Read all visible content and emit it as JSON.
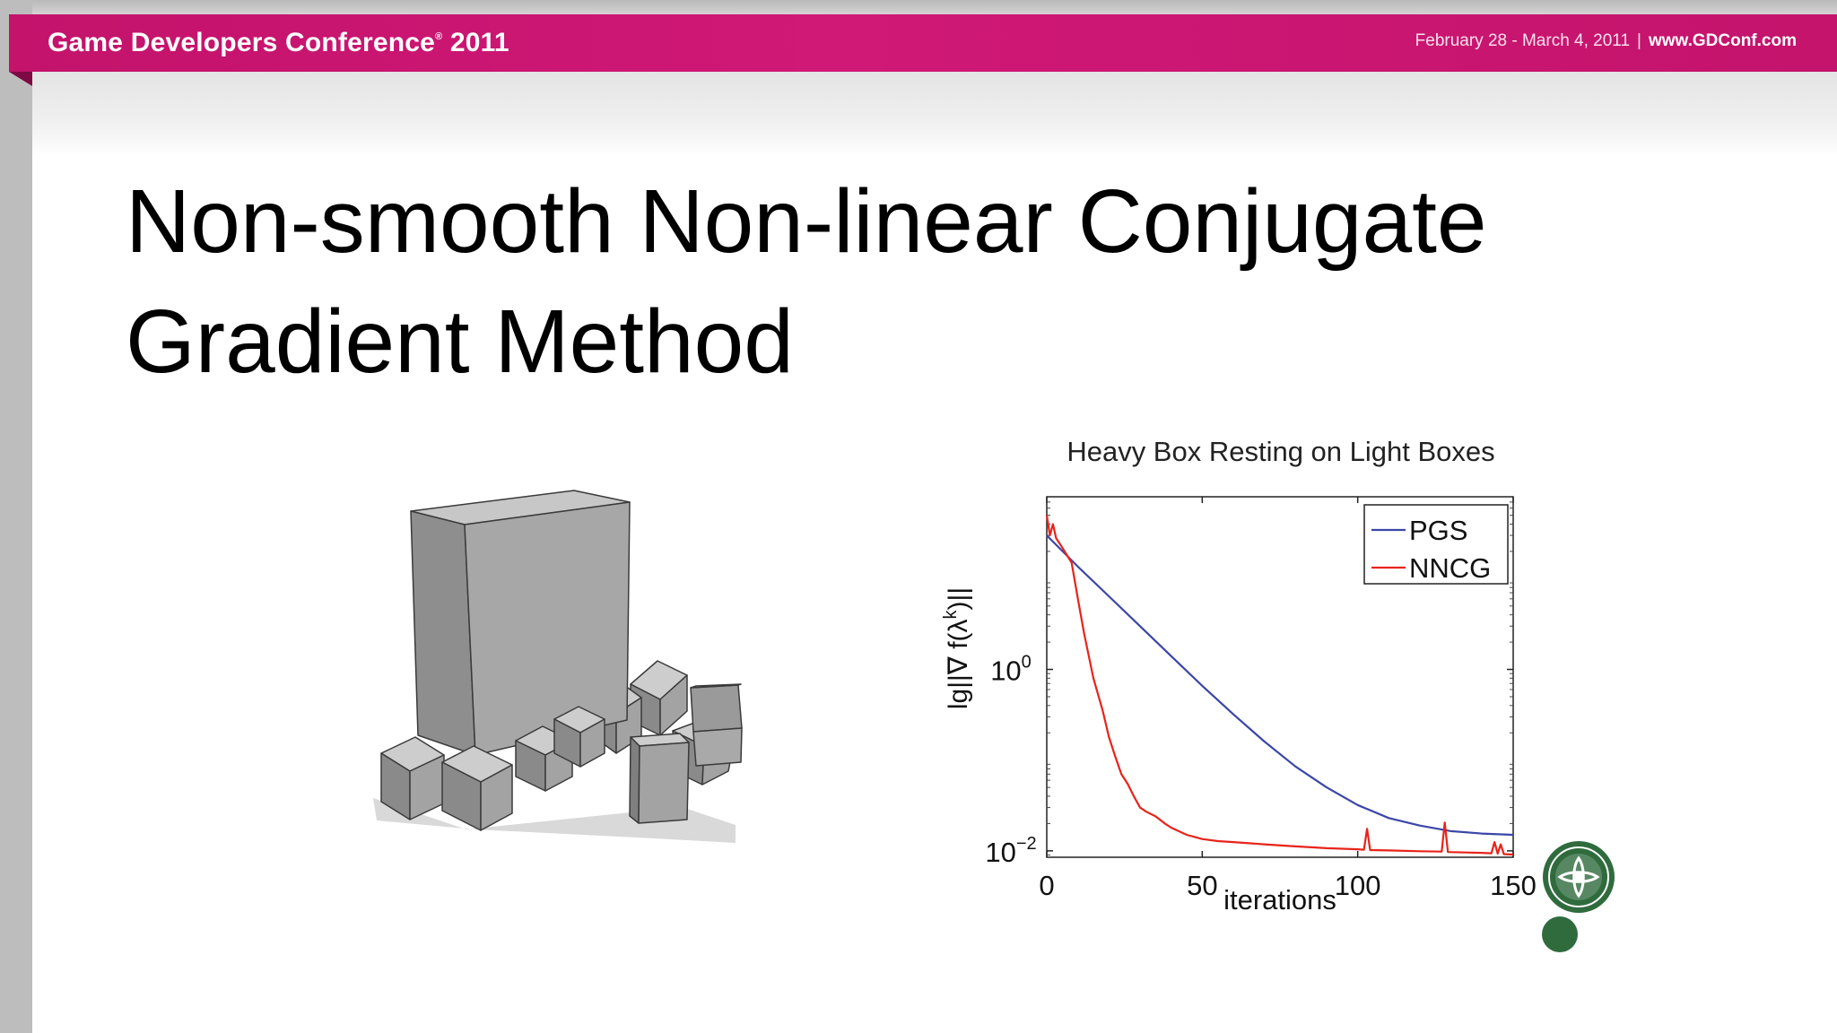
{
  "header": {
    "conference": "Game Developers Conference",
    "reg_mark": "®",
    "year": "2011",
    "dates": "February 28 - March 4, 2011",
    "separator": "|",
    "website": "www.GDConf.com",
    "brand_color": "#c8156f"
  },
  "slide": {
    "title_line1": "Non-smooth Non-linear Conjugate",
    "title_line2": "Gradient Method"
  },
  "illustration": {
    "icon": "stacked-boxes-render"
  },
  "seal": {
    "icon": "university-seal",
    "color": "#2f6b3d"
  },
  "chart_data": {
    "type": "line",
    "title": "Heavy Box Resting on Light Boxes",
    "xlabel": "iterations",
    "ylabel": "lg||∇ f(λ^k)||",
    "xlim": [
      0,
      150
    ],
    "ylim": [
      0.0085,
      80
    ],
    "yscale": "log",
    "xticks": [
      0,
      50,
      100,
      150
    ],
    "yticks": [
      {
        "base": "10",
        "exp": "0",
        "value": 1
      },
      {
        "base": "10",
        "exp": "−2",
        "value": 0.01
      }
    ],
    "legend_position": "top-right",
    "series": [
      {
        "name": "PGS",
        "color": "#3a46a8",
        "x": [
          0,
          10,
          20,
          30,
          40,
          50,
          60,
          70,
          80,
          90,
          100,
          110,
          120,
          130,
          140,
          150
        ],
        "y": [
          30,
          13.6,
          6.4,
          3.0,
          1.4,
          0.66,
          0.32,
          0.16,
          0.085,
          0.05,
          0.032,
          0.023,
          0.019,
          0.0165,
          0.0155,
          0.015
        ]
      },
      {
        "name": "NNCG",
        "color": "#e8231a",
        "x": [
          0,
          1,
          2,
          3,
          5,
          8,
          10,
          12,
          15,
          18,
          20,
          22,
          24,
          26,
          28,
          30,
          32,
          35,
          38,
          40,
          45,
          50,
          55,
          60,
          70,
          80,
          90,
          100,
          102,
          103,
          104,
          110,
          120,
          127,
          128,
          129,
          135,
          140,
          143,
          144,
          145,
          146,
          147,
          150
        ],
        "y": [
          50,
          30,
          40,
          28,
          22,
          15,
          6,
          2.5,
          0.8,
          0.35,
          0.18,
          0.11,
          0.07,
          0.055,
          0.04,
          0.03,
          0.027,
          0.024,
          0.02,
          0.018,
          0.015,
          0.0135,
          0.0128,
          0.0125,
          0.0118,
          0.0112,
          0.0107,
          0.0104,
          0.0103,
          0.0175,
          0.0102,
          0.0101,
          0.0099,
          0.0098,
          0.0205,
          0.0097,
          0.0096,
          0.0095,
          0.0094,
          0.0125,
          0.0093,
          0.0118,
          0.0092,
          0.0091
        ]
      }
    ]
  }
}
